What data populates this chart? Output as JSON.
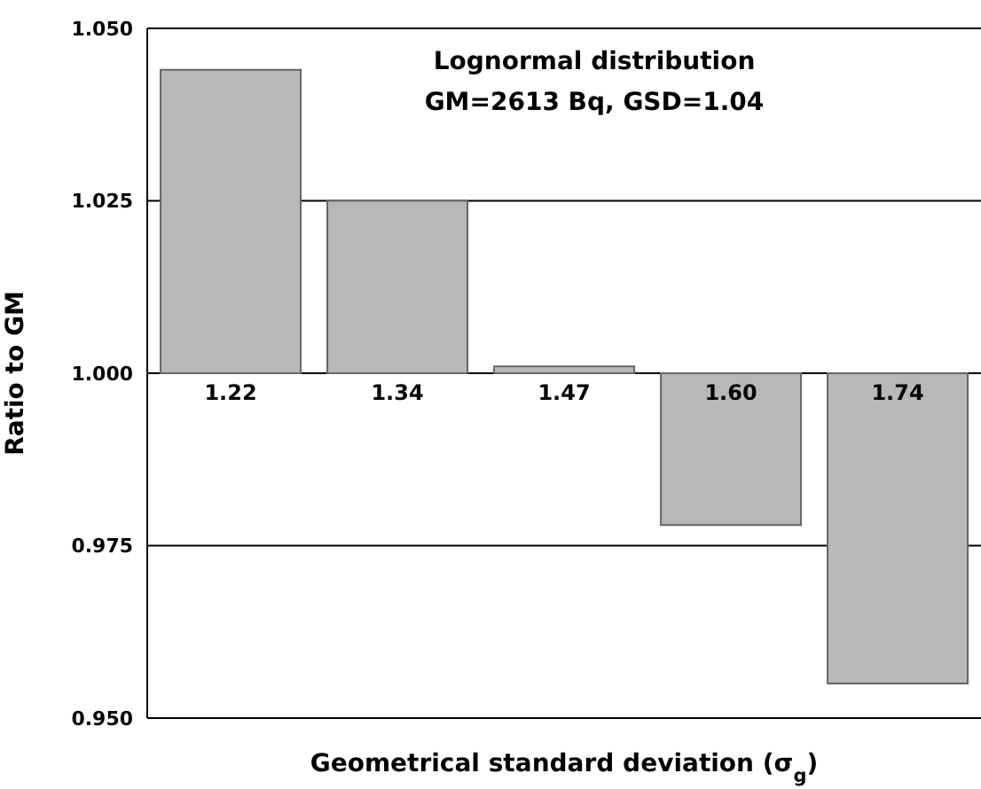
{
  "chart_data": {
    "type": "bar",
    "title": "Lognormal distribution",
    "subtitle": "GM=2613 Bq, GSD=1.04",
    "xlabel": "Geometrical standard deviation (σ$_{g}$)",
    "ylabel": "Ratio to GM",
    "categories": [
      "1.22",
      "1.34",
      "1.47",
      "1.60",
      "1.74"
    ],
    "base": [
      1,
      1,
      1,
      1,
      1
    ],
    "values": [
      0.044,
      0.025,
      0.001,
      -0.022,
      -0.045
    ],
    "color": "#b8b8b8",
    "ylim": [
      0.95,
      1.05
    ],
    "yticks": [
      {
        "value": 0.95,
        "label": "0.950"
      },
      {
        "value": 0.975,
        "label": "0.975"
      },
      {
        "value": 1,
        "label": "1.000"
      },
      {
        "value": 1.025,
        "label": "1.025"
      },
      {
        "value": 1.05,
        "label": "1.050"
      }
    ],
    "grid": "y"
  }
}
